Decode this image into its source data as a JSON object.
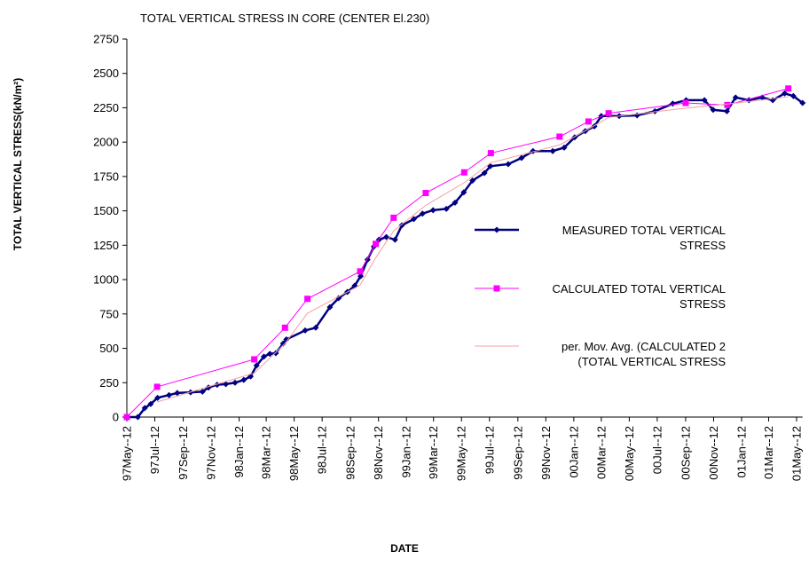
{
  "chart_data": {
    "type": "line",
    "title": "TOTAL VERTICAL STRESS IN CORE (CENTER El.230)",
    "xlabel": "DATE",
    "ylabel": "TOTAL VERTICAL STRESS(kN/m²)",
    "ylim": [
      0,
      2750
    ],
    "yticks": [
      0,
      250,
      500,
      750,
      1000,
      1250,
      1500,
      1750,
      2000,
      2250,
      2500,
      2750
    ],
    "xlim": [
      "1997-05-12",
      "2001-05-25"
    ],
    "xticks": [
      {
        "value": "1997-05-12",
        "label": "97May--12"
      },
      {
        "value": "1997-07-12",
        "label": "97Jul--12"
      },
      {
        "value": "1997-09-12",
        "label": "97Sep--12"
      },
      {
        "value": "1997-11-12",
        "label": "97Nov--12"
      },
      {
        "value": "1998-01-12",
        "label": "98Jan--12"
      },
      {
        "value": "1998-03-12",
        "label": "98Mar--12"
      },
      {
        "value": "1998-05-12",
        "label": "98May--12"
      },
      {
        "value": "1998-07-12",
        "label": "98Jul--12"
      },
      {
        "value": "1998-09-12",
        "label": "98Sep--12"
      },
      {
        "value": "1998-11-12",
        "label": "98Nov--12"
      },
      {
        "value": "1999-01-12",
        "label": "99Jan--12"
      },
      {
        "value": "1999-03-12",
        "label": "99Mar--12"
      },
      {
        "value": "1999-05-12",
        "label": "99May--12"
      },
      {
        "value": "1999-07-12",
        "label": "99Jul--12"
      },
      {
        "value": "1999-09-12",
        "label": "99Sep--12"
      },
      {
        "value": "1999-11-12",
        "label": "99Nov--12"
      },
      {
        "value": "2000-01-12",
        "label": "00Jan--12"
      },
      {
        "value": "2000-03-12",
        "label": "00Mar--12"
      },
      {
        "value": "2000-05-12",
        "label": "00May--12"
      },
      {
        "value": "2000-07-12",
        "label": "00Jul--12"
      },
      {
        "value": "2000-09-12",
        "label": "00Sep--12"
      },
      {
        "value": "2000-11-12",
        "label": "00Nov--12"
      },
      {
        "value": "2001-01-12",
        "label": "01Jan--12"
      },
      {
        "value": "2001-03-12",
        "label": "01Mar--12"
      },
      {
        "value": "2001-05-12",
        "label": "01May--12"
      }
    ],
    "series": [
      {
        "name": "MEASURED TOTAL VERTICAL STRESS",
        "color": "#000080",
        "marker": "diamond",
        "line_width": 2.5,
        "x": [
          "1997-05-12",
          "1997-06-05",
          "1997-06-20",
          "1997-07-03",
          "1997-07-18",
          "1997-08-12",
          "1997-08-30",
          "1997-09-28",
          "1997-10-24",
          "1997-11-06",
          "1997-11-25",
          "1997-12-14",
          "1998-01-03",
          "1998-01-22",
          "1998-02-06",
          "1998-02-19",
          "1998-03-07",
          "1998-03-20",
          "1998-04-02",
          "1998-04-18",
          "1998-04-25",
          "1998-06-05",
          "1998-06-28",
          "1998-07-29",
          "1998-08-17",
          "1998-09-05",
          "1998-09-21",
          "1998-10-04",
          "1998-10-19",
          "1998-11-02",
          "1998-11-13",
          "1998-11-29",
          "1998-12-18",
          "1999-01-02",
          "1999-01-28",
          "1999-02-16",
          "1999-03-11",
          "1999-04-09",
          "1999-04-28",
          "1999-05-17",
          "1999-06-05",
          "1999-07-01",
          "1999-07-14",
          "1999-08-22",
          "1999-09-20",
          "1999-10-15",
          "1999-11-27",
          "1999-12-22",
          "2000-01-14",
          "2000-02-06",
          "2000-02-26",
          "2000-03-12",
          "2000-04-20",
          "2000-05-29",
          "2000-07-07",
          "2000-08-15",
          "2000-09-13",
          "2000-10-23",
          "2000-11-11",
          "2000-12-11",
          "2000-12-30",
          "2001-01-28",
          "2001-02-26",
          "2001-03-21",
          "2001-04-16",
          "2001-05-05",
          "2001-05-25"
        ],
        "values": [
          0,
          0,
          65,
          95,
          140,
          160,
          175,
          180,
          185,
          215,
          235,
          240,
          250,
          270,
          295,
          375,
          440,
          460,
          465,
          535,
          565,
          630,
          650,
          800,
          865,
          910,
          955,
          1025,
          1145,
          1240,
          1290,
          1310,
          1290,
          1395,
          1440,
          1480,
          1505,
          1515,
          1560,
          1635,
          1720,
          1775,
          1825,
          1840,
          1885,
          1935,
          1935,
          1960,
          2035,
          2080,
          2115,
          2190,
          2190,
          2195,
          2225,
          2280,
          2305,
          2305,
          2235,
          2225,
          2325,
          2305,
          2325,
          2305,
          2355,
          2335,
          2285
        ]
      },
      {
        "name": "CALCULATED TOTAL VERTICAL STRESS",
        "color": "#ff00ff",
        "marker": "square",
        "line_width": 1,
        "x": [
          "1997-05-12",
          "1997-07-17",
          "1998-02-14",
          "1998-04-22",
          "1998-06-10",
          "1998-10-03",
          "1998-11-06",
          "1998-12-15",
          "1999-02-23",
          "1999-05-18",
          "1999-07-15",
          "1999-12-12",
          "2000-02-13",
          "2000-03-28",
          "2000-09-12",
          "2000-12-12",
          "2001-04-24"
        ],
        "values": [
          0,
          220,
          420,
          650,
          860,
          1060,
          1260,
          1450,
          1630,
          1780,
          1920,
          2040,
          2150,
          2210,
          2285,
          2270,
          2390
        ]
      },
      {
        "name": "per. Mov. Avg. (CALCULATED 2 (TOTAL VERTICAL STRESS",
        "color": "#f4a0a0",
        "marker": "none",
        "line_width": 1,
        "x": [
          "1997-07-17",
          "1998-02-14",
          "1998-04-22",
          "1998-06-10",
          "1998-10-03",
          "1998-11-06",
          "1998-12-15",
          "1999-02-23",
          "1999-05-18",
          "1999-07-15",
          "1999-12-12",
          "2000-02-13",
          "2000-03-28",
          "2000-09-12",
          "2000-12-12",
          "2001-04-24"
        ],
        "values": [
          110,
          320,
          535,
          755,
          960,
          1160,
          1355,
          1540,
          1705,
          1850,
          1980,
          2095,
          2180,
          2247.5,
          2277.5,
          2330
        ]
      }
    ]
  }
}
